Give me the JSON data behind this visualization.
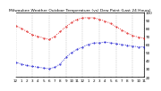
{
  "title": "Milwaukee Weather Outdoor Temperature (vs) Dew Point (Last 24 Hours)",
  "temp": [
    83,
    80,
    76,
    72,
    70,
    68,
    66,
    70,
    76,
    82,
    87,
    91,
    93,
    93,
    93,
    91,
    89,
    86,
    82,
    78,
    74,
    71,
    69,
    68
  ],
  "dew": [
    38,
    36,
    34,
    33,
    32,
    31,
    30,
    32,
    36,
    44,
    50,
    54,
    57,
    60,
    62,
    62,
    63,
    62,
    61,
    60,
    59,
    58,
    57,
    57
  ],
  "temp_color": "#dd0000",
  "dew_color": "#0000cc",
  "grid_color": "#999999",
  "bg_color": "#ffffff",
  "ylim": [
    20,
    100
  ],
  "ytick_vals": [
    20,
    30,
    40,
    50,
    60,
    70,
    80,
    90,
    100
  ],
  "ytick_labels": [
    "20",
    "30",
    "40",
    "50",
    "60",
    "70",
    "80",
    "90",
    "100"
  ],
  "x_labels": [
    "12",
    "1",
    "2",
    "3",
    "4",
    "5",
    "6",
    "7",
    "8",
    "9",
    "10",
    "11",
    "12",
    "1",
    "2",
    "3",
    "4",
    "5",
    "6",
    "7",
    "8",
    "9",
    "10",
    "11"
  ],
  "grid_positions": [
    0,
    3,
    6,
    9,
    12,
    15,
    18,
    21,
    23
  ],
  "title_fontsize": 3.2,
  "tick_fontsize": 3.0,
  "line_width": 0.6,
  "marker_size": 0.8
}
